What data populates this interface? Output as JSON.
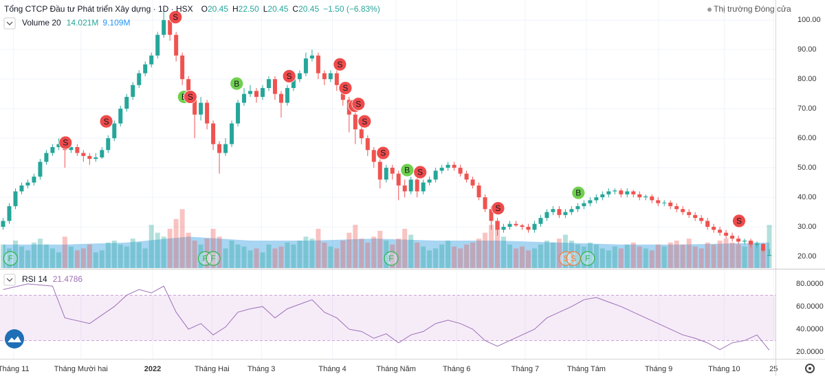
{
  "chart_data": {
    "type": "candlestick",
    "header": {
      "title": "Tổng CTCP Đầu tư Phát triển Xây dựng · 1D · HSX",
      "ohlc": [
        {
          "label": "O",
          "value": "20.45"
        },
        {
          "label": "H",
          "value": "22.50"
        },
        {
          "label": "L",
          "value": "20.45"
        },
        {
          "label": "C",
          "value": "20.45"
        }
      ],
      "change": "−1.50 (−6.83%)",
      "market_status": "Thị trường Đóng cửa"
    },
    "up_color": "#26a69a",
    "down_color": "#ef5350",
    "grid": true,
    "xlim": [
      -0.5,
      125
    ],
    "xticks": [
      {
        "value": 1.7,
        "label": "Tháng 11"
      },
      {
        "value": 12.6,
        "label": "Tháng Mười hai"
      },
      {
        "value": 24.2,
        "label": "2022"
      },
      {
        "value": 33.8,
        "label": "Tháng Hai"
      },
      {
        "value": 41.8,
        "label": "Tháng 3"
      },
      {
        "value": 53.3,
        "label": "Tháng 4"
      },
      {
        "value": 63.6,
        "label": "Tháng Năm"
      },
      {
        "value": 73.4,
        "label": "Tháng 6"
      },
      {
        "value": 84.5,
        "label": "Tháng 7"
      },
      {
        "value": 94.4,
        "label": "Tháng Tám"
      },
      {
        "value": 106.1,
        "label": "Tháng 9"
      },
      {
        "value": 116.7,
        "label": "Tháng 10"
      },
      {
        "value": 124.7,
        "label": "25"
      }
    ],
    "ylim": [
      15.8,
      106.8
    ],
    "yticks": [
      {
        "value": 100,
        "label": "100.00"
      },
      {
        "value": 90,
        "label": "90.00"
      },
      {
        "value": 80,
        "label": "80.00"
      },
      {
        "value": 70,
        "label": "70.00"
      },
      {
        "value": 60,
        "label": "60.00"
      },
      {
        "value": 50,
        "label": "50.00"
      },
      {
        "value": 40,
        "label": "40.00"
      },
      {
        "value": 30,
        "label": "30.00"
      },
      {
        "value": 20,
        "label": "20.00"
      }
    ],
    "candles": [
      [
        30,
        33,
        29,
        32
      ],
      [
        32,
        38,
        31,
        37
      ],
      [
        37,
        43,
        36,
        42
      ],
      [
        42,
        45,
        41,
        44
      ],
      [
        44,
        46,
        43,
        45
      ],
      [
        45,
        48,
        44,
        47
      ],
      [
        47,
        53,
        46,
        52
      ],
      [
        52,
        56,
        51,
        55
      ],
      [
        55,
        58,
        54,
        57
      ],
      [
        57,
        60,
        56,
        58
      ],
      [
        58,
        59,
        50,
        56
      ],
      [
        56,
        58,
        55,
        57
      ],
      [
        57,
        58,
        54,
        55
      ],
      [
        55,
        56,
        52,
        54
      ],
      [
        54,
        55,
        51,
        53
      ],
      [
        53,
        55,
        52,
        53.5
      ],
      [
        53.5,
        57,
        53,
        56
      ],
      [
        56,
        61,
        55,
        60
      ],
      [
        60,
        66,
        59,
        65
      ],
      [
        65,
        71,
        64,
        70
      ],
      [
        70,
        75,
        69,
        74
      ],
      [
        74,
        79,
        73,
        78
      ],
      [
        78,
        83,
        77,
        82
      ],
      [
        82,
        86,
        81,
        85
      ],
      [
        85,
        89,
        84,
        88
      ],
      [
        88,
        96,
        87,
        95
      ],
      [
        95,
        104,
        94,
        100
      ],
      [
        100,
        101,
        93,
        95
      ],
      [
        95,
        96,
        86,
        88
      ],
      [
        88,
        89,
        78,
        80
      ],
      [
        80,
        81,
        72,
        74
      ],
      [
        74,
        75,
        60,
        68
      ],
      [
        68,
        74,
        66,
        72
      ],
      [
        72,
        73,
        63,
        65
      ],
      [
        65,
        66,
        56,
        58
      ],
      [
        58,
        59,
        48,
        55
      ],
      [
        55,
        60,
        54,
        58
      ],
      [
        58,
        66,
        57,
        65
      ],
      [
        65,
        73,
        64,
        72
      ],
      [
        72,
        77,
        71,
        75
      ],
      [
        75,
        78,
        74,
        76
      ],
      [
        76,
        77,
        72,
        74
      ],
      [
        74,
        78,
        73,
        77
      ],
      [
        77,
        81,
        76,
        80
      ],
      [
        80,
        81,
        73,
        75
      ],
      [
        75,
        76,
        67,
        72
      ],
      [
        72,
        78,
        71,
        77
      ],
      [
        77,
        81,
        76,
        80
      ],
      [
        80,
        83,
        79,
        82
      ],
      [
        82,
        89,
        81,
        87
      ],
      [
        87,
        90,
        86,
        88
      ],
      [
        88,
        89,
        80,
        82
      ],
      [
        82,
        83,
        78,
        80
      ],
      [
        80,
        83,
        79,
        82
      ],
      [
        82,
        83,
        76,
        78
      ],
      [
        78,
        79,
        71,
        73
      ],
      [
        73,
        74,
        62,
        68
      ],
      [
        68,
        69,
        58,
        63
      ],
      [
        63,
        64,
        58,
        60
      ],
      [
        60,
        61,
        54,
        56
      ],
      [
        56,
        57,
        50,
        52
      ],
      [
        52,
        53,
        43,
        46
      ],
      [
        46,
        51,
        45,
        50
      ],
      [
        50,
        51,
        46,
        48
      ],
      [
        48,
        49,
        39,
        44
      ],
      [
        44,
        46,
        40,
        42
      ],
      [
        42,
        47,
        41,
        46
      ],
      [
        46,
        47,
        40,
        42
      ],
      [
        42,
        46,
        41,
        45
      ],
      [
        45,
        47,
        44,
        46
      ],
      [
        46,
        50,
        45,
        49
      ],
      [
        49,
        51,
        48,
        50
      ],
      [
        50,
        52,
        49,
        51
      ],
      [
        51,
        52,
        49,
        50
      ],
      [
        50,
        51,
        47,
        48
      ],
      [
        48,
        49,
        45,
        46
      ],
      [
        46,
        47,
        43,
        44
      ],
      [
        44,
        45,
        39,
        40
      ],
      [
        40,
        41,
        35,
        36
      ],
      [
        36,
        37,
        29,
        32
      ],
      [
        32,
        33,
        27,
        29
      ],
      [
        29,
        31,
        28,
        30
      ],
      [
        30,
        32,
        29,
        31
      ],
      [
        31,
        32,
        30,
        30.5
      ],
      [
        30.5,
        31,
        29,
        30
      ],
      [
        30,
        31,
        28,
        29
      ],
      [
        29,
        32,
        28,
        31
      ],
      [
        31,
        34,
        30,
        33
      ],
      [
        33,
        36,
        32,
        35
      ],
      [
        35,
        37,
        34,
        36
      ],
      [
        36,
        37,
        33,
        34
      ],
      [
        34,
        36,
        33,
        35
      ],
      [
        35,
        37,
        34,
        36
      ],
      [
        36,
        38,
        35,
        37
      ],
      [
        37,
        39,
        36,
        38
      ],
      [
        38,
        40,
        37,
        39
      ],
      [
        39,
        41,
        38,
        40
      ],
      [
        40,
        42,
        39,
        41
      ],
      [
        41,
        43,
        40,
        42
      ],
      [
        42,
        43,
        41,
        42.3
      ],
      [
        42.3,
        43,
        40,
        41
      ],
      [
        41,
        43,
        40,
        42
      ],
      [
        42,
        42.5,
        40,
        41
      ],
      [
        41,
        42,
        39,
        40
      ],
      [
        40,
        41,
        39,
        40.3
      ],
      [
        40.3,
        41,
        38,
        39
      ],
      [
        39,
        40,
        37,
        38
      ],
      [
        38,
        39,
        37,
        38.2
      ],
      [
        38.2,
        39,
        36,
        37
      ],
      [
        37,
        38,
        35,
        36
      ],
      [
        36,
        37,
        34,
        35
      ],
      [
        35,
        36,
        33,
        34
      ],
      [
        34,
        35,
        32,
        33
      ],
      [
        33,
        34,
        31,
        32
      ],
      [
        32,
        33,
        29,
        30
      ],
      [
        30,
        31,
        28,
        29
      ],
      [
        29,
        30,
        27,
        28
      ],
      [
        28,
        29,
        26,
        27
      ],
      [
        27,
        28,
        25,
        26
      ],
      [
        26,
        27,
        24,
        25
      ],
      [
        25,
        26,
        24,
        25.3
      ],
      [
        25.3,
        26,
        23,
        24
      ],
      [
        24,
        25,
        23,
        24.2
      ],
      [
        24.2,
        24.5,
        21.5,
        21.95
      ],
      [
        20.45,
        22.5,
        20.45,
        20.45
      ]
    ],
    "volume": {
      "name": "Volume 20",
      "label_values": [
        "14.021M",
        "9.109M"
      ],
      "lim": [
        0,
        35
      ],
      "values": [
        12,
        10,
        14,
        11,
        9,
        13,
        15,
        12,
        10,
        8,
        16,
        11,
        9,
        10,
        12,
        8,
        9,
        13,
        14,
        12,
        11,
        15,
        13,
        10,
        22,
        18,
        16,
        20,
        25,
        30,
        18,
        14,
        12,
        15,
        20,
        16,
        10,
        14,
        12,
        11,
        9,
        10,
        8,
        12,
        10,
        11,
        13,
        12,
        14,
        16,
        15,
        20,
        13,
        11,
        10,
        14,
        18,
        22,
        15,
        13,
        16,
        19,
        14,
        12,
        15,
        20,
        17,
        13,
        11,
        9,
        10,
        12,
        14,
        11,
        10,
        12,
        13,
        15,
        18,
        22,
        24,
        16,
        12,
        10,
        11,
        9,
        10,
        12,
        14,
        13,
        15,
        17,
        14,
        12,
        11,
        13,
        12,
        10,
        9,
        11,
        10,
        12,
        13,
        11,
        10,
        9,
        12,
        11,
        13,
        14,
        12,
        15,
        11,
        10,
        13,
        12,
        14,
        15,
        13,
        12,
        11,
        14,
        13,
        10,
        22
      ],
      "ma_color": "#5fb2e8",
      "ma_x": [
        0,
        10,
        20,
        30,
        40,
        50,
        60,
        70,
        80,
        90,
        100,
        110,
        124
      ],
      "ma_values": [
        12,
        12,
        13,
        16,
        14,
        14,
        15,
        14,
        14,
        13,
        12,
        12,
        13
      ]
    },
    "signals": [
      {
        "x": 10.1,
        "price": 58.5,
        "label": "S"
      },
      {
        "x": 16.7,
        "price": 65.7,
        "label": "S"
      },
      {
        "x": 27.9,
        "price": 101,
        "label": "S"
      },
      {
        "x": 29.3,
        "price": 74,
        "label": "B"
      },
      {
        "x": 30.3,
        "price": 74,
        "label": "S"
      },
      {
        "x": 37.8,
        "price": 78.5,
        "label": "B"
      },
      {
        "x": 46.3,
        "price": 81,
        "label": "S"
      },
      {
        "x": 54.5,
        "price": 85,
        "label": "S"
      },
      {
        "x": 55.4,
        "price": 77,
        "label": "S"
      },
      {
        "x": 56.9,
        "price": 71,
        "label": "S"
      },
      {
        "x": 57.5,
        "price": 71.6,
        "label": "S"
      },
      {
        "x": 58.5,
        "price": 65.7,
        "label": "S"
      },
      {
        "x": 61.5,
        "price": 55,
        "label": "S"
      },
      {
        "x": 65.4,
        "price": 49.2,
        "label": "B"
      },
      {
        "x": 67.5,
        "price": 48.5,
        "label": "S"
      },
      {
        "x": 80.1,
        "price": 36.3,
        "label": "S"
      },
      {
        "x": 93.1,
        "price": 41.5,
        "label": "B"
      },
      {
        "x": 119.1,
        "price": 32,
        "label": "S"
      }
    ],
    "flags": [
      {
        "x": 1.2,
        "label": "F",
        "color": "#2db34a"
      },
      {
        "x": 32.7,
        "label": "F",
        "color": "#2db34a"
      },
      {
        "x": 34,
        "label": "F",
        "color": "#2db34a"
      },
      {
        "x": 62.8,
        "label": "F",
        "color": "#2db34a"
      },
      {
        "x": 91.1,
        "label": "S",
        "color": "#f57c3a"
      },
      {
        "x": 92.3,
        "label": "S",
        "color": "#f57c3a"
      },
      {
        "x": 94.6,
        "label": "F",
        "color": "#2db34a"
      }
    ],
    "rsi": {
      "name": "RSI 14",
      "value_label": "21.4786",
      "color": "#9c6fb6",
      "ylim": [
        13.9,
        92.7
      ],
      "yticks": [
        {
          "value": 80,
          "label": "80.0000"
        },
        {
          "value": 60,
          "label": "60.0000"
        },
        {
          "value": 40,
          "label": "40.0000"
        },
        {
          "value": 20,
          "label": "20.0000"
        }
      ],
      "bands": [
        30,
        70
      ],
      "x": [
        0,
        4,
        8,
        10,
        14,
        18,
        20,
        22,
        24,
        26,
        28,
        30,
        32,
        34,
        36,
        38,
        40,
        42,
        44,
        46,
        48,
        50,
        52,
        54,
        56,
        58,
        60,
        62,
        64,
        66,
        68,
        70,
        72,
        74,
        76,
        78,
        80,
        82,
        84,
        86,
        88,
        90,
        92,
        94,
        96,
        98,
        100,
        102,
        104,
        106,
        108,
        110,
        112,
        114,
        116,
        118,
        120,
        122,
        124
      ],
      "values": [
        75,
        80,
        78,
        50,
        45,
        60,
        70,
        75,
        72,
        78,
        55,
        40,
        45,
        35,
        42,
        55,
        58,
        60,
        50,
        58,
        62,
        66,
        55,
        50,
        40,
        38,
        32,
        36,
        28,
        35,
        38,
        45,
        48,
        45,
        40,
        30,
        25,
        30,
        35,
        40,
        50,
        55,
        60,
        66,
        68,
        64,
        60,
        55,
        50,
        45,
        40,
        35,
        32,
        28,
        22,
        28,
        30,
        35,
        21.4786
      ]
    }
  }
}
